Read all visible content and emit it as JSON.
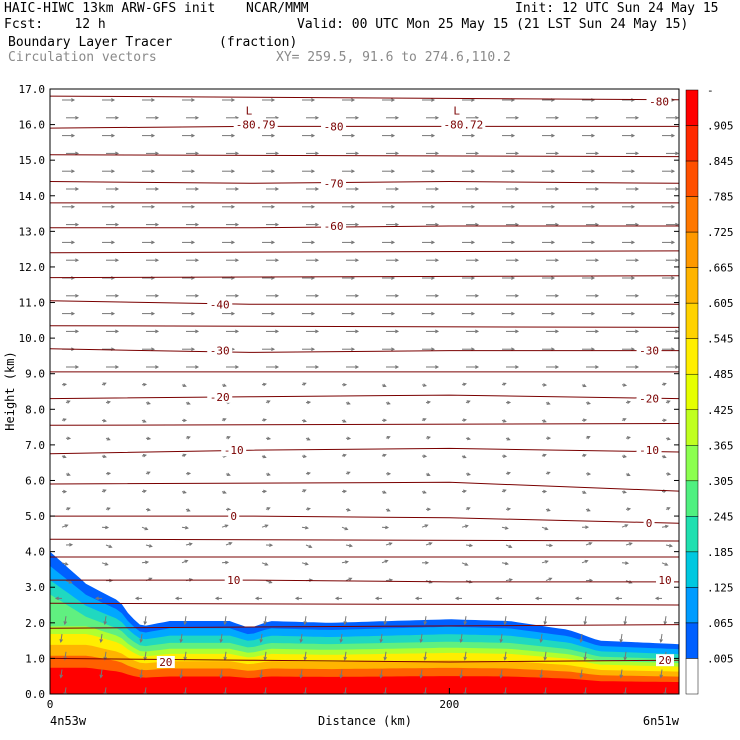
{
  "header": {
    "title_left": "HAIC-HIWC 13km ARW-GFS init",
    "org": "NCAR/MMM",
    "init": "Init: 12 UTC Sun 24 May 15",
    "fcst": "Fcst:    12 h",
    "valid": "Valid: 00 UTC Mon 25 May 15 (21 LST Sun 24 May 15)",
    "field": "Boundary Layer Tracer",
    "field_units": "(fraction)",
    "vectors": "Circulation vectors",
    "xy": "XY= 259.5, 91.6 to 274.6,110.2"
  },
  "chart_data": {
    "type": "heatmap",
    "xlabel": "Distance (km)",
    "ylabel": "Height (km)",
    "xlim": [
      0,
      315
    ],
    "ylim": [
      0,
      17
    ],
    "x_ticks": [
      {
        "value": 0,
        "label": "0"
      },
      {
        "value": 200,
        "label": "200"
      }
    ],
    "x_end_labels": {
      "left": "4n53w",
      "right": "6n51w"
    },
    "y_ticks": [
      "0.0",
      "1.0",
      "2.0",
      "3.0",
      "4.0",
      "5.0",
      "6.0",
      "7.0",
      "8.0",
      "9.0",
      "10.0",
      "11.0",
      "12.0",
      "13.0",
      "14.0",
      "15.0",
      "16.0",
      "17.0"
    ],
    "colorbar": {
      "labels": [
        "-",
        ".905",
        ".845",
        ".785",
        ".725",
        ".665",
        ".605",
        ".545",
        ".485",
        ".425",
        ".365",
        ".305",
        ".245",
        ".185",
        ".125",
        ".065",
        ".005"
      ],
      "colors": [
        "#ff0000",
        "#ff2a00",
        "#ff5000",
        "#ff7800",
        "#ff9900",
        "#ffb400",
        "#ffd200",
        "#ffee00",
        "#e6ff00",
        "#c0ff20",
        "#8cff50",
        "#50f080",
        "#20e0b0",
        "#00c8e0",
        "#009cff",
        "#0060ff",
        "#ffffff"
      ]
    },
    "tracer_top_km": [
      [
        0,
        4.0
      ],
      [
        8,
        3.6
      ],
      [
        18,
        3.1
      ],
      [
        28,
        2.8
      ],
      [
        35,
        2.6
      ],
      [
        40,
        2.2
      ],
      [
        46,
        1.9
      ],
      [
        60,
        2.05
      ],
      [
        90,
        2.05
      ],
      [
        100,
        1.85
      ],
      [
        110,
        2.05
      ],
      [
        140,
        2.0
      ],
      [
        170,
        2.05
      ],
      [
        200,
        2.1
      ],
      [
        230,
        2.05
      ],
      [
        260,
        1.8
      ],
      [
        275,
        1.5
      ],
      [
        315,
        1.4
      ]
    ],
    "temperature_contours": [
      {
        "label": "20",
        "points": [
          [
            0,
            1.0
          ],
          [
            100,
            0.95
          ],
          [
            200,
            0.9
          ],
          [
            315,
            0.95
          ]
        ],
        "label_at": [
          [
            58,
            0.9
          ],
          [
            308,
            0.95
          ]
        ]
      },
      {
        "label": "10",
        "points": [
          [
            0,
            3.2
          ],
          [
            100,
            3.2
          ],
          [
            200,
            3.15
          ],
          [
            315,
            3.15
          ]
        ],
        "label_at": [
          [
            92,
            3.2
          ],
          [
            308,
            3.2
          ]
        ]
      },
      {
        "label": "0",
        "points": [
          [
            0,
            5.0
          ],
          [
            100,
            5.0
          ],
          [
            200,
            4.95
          ],
          [
            315,
            4.8
          ]
        ],
        "label_at": [
          [
            92,
            5.0
          ],
          [
            300,
            4.8
          ]
        ]
      },
      {
        "label": "-10",
        "points": [
          [
            0,
            6.75
          ],
          [
            100,
            6.85
          ],
          [
            200,
            6.9
          ],
          [
            315,
            6.8
          ]
        ],
        "label_at": [
          [
            92,
            6.85
          ],
          [
            300,
            6.85
          ]
        ]
      },
      {
        "label": "-20",
        "points": [
          [
            0,
            8.3
          ],
          [
            100,
            8.35
          ],
          [
            200,
            8.4
          ],
          [
            315,
            8.3
          ]
        ],
        "label_at": [
          [
            85,
            8.35
          ],
          [
            300,
            8.3
          ]
        ]
      },
      {
        "label": "-30",
        "points": [
          [
            0,
            9.7
          ],
          [
            100,
            9.6
          ],
          [
            200,
            9.65
          ],
          [
            315,
            9.65
          ]
        ],
        "label_at": [
          [
            85,
            9.65
          ],
          [
            300,
            9.65
          ]
        ]
      },
      {
        "label": "-40",
        "points": [
          [
            0,
            11.05
          ],
          [
            100,
            10.95
          ],
          [
            200,
            10.95
          ],
          [
            315,
            10.95
          ]
        ],
        "label_at": [
          [
            85,
            10.95
          ]
        ]
      },
      {
        "label": "-60",
        "points": [
          [
            0,
            13.1
          ],
          [
            100,
            13.1
          ],
          [
            200,
            13.15
          ],
          [
            315,
            13.15
          ]
        ],
        "label_at": [
          [
            142,
            13.15
          ]
        ]
      },
      {
        "label": "-70",
        "points": [
          [
            0,
            14.4
          ],
          [
            100,
            14.35
          ],
          [
            200,
            14.4
          ],
          [
            315,
            14.35
          ]
        ],
        "label_at": [
          [
            142,
            14.35
          ]
        ]
      },
      {
        "label": "-80",
        "points": [
          [
            0,
            15.9
          ],
          [
            100,
            15.95
          ],
          [
            200,
            15.95
          ],
          [
            315,
            15.95
          ]
        ],
        "label_at": [
          [
            142,
            15.95
          ],
          [
            305,
            16.65
          ]
        ]
      }
    ],
    "minima": [
      {
        "x": 103,
        "y": 16.0,
        "mark": "L",
        "label": "-80.79"
      },
      {
        "x": 207,
        "y": 16.0,
        "mark": "L",
        "label": "-80.72"
      }
    ]
  }
}
